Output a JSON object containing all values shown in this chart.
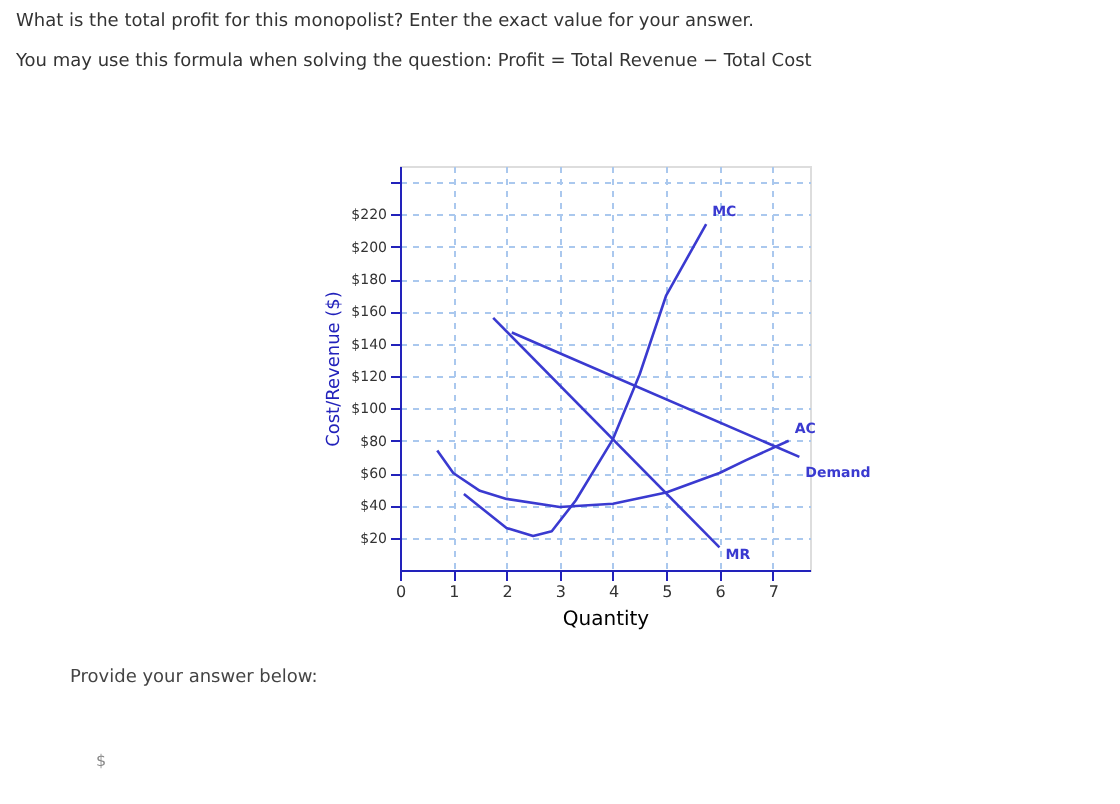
{
  "chart_data": {
    "type": "line",
    "title": "What is the total profit for this monopolist?  Enter the exact value for your answer.",
    "subtitle": "You may use this formula when solving the question: Profit = Total Revenue − Total Cost",
    "xlabel": "Quantity",
    "ylabel": "Cost/Revenue ($)",
    "xlim": [
      0,
      7.7
    ],
    "xticks": [
      0,
      1,
      2,
      3,
      4,
      5,
      6,
      7
    ],
    "ylim": [
      0,
      250
    ],
    "yticks": [
      {
        "value": 20,
        "label": "$20"
      },
      {
        "value": 40,
        "label": "$40"
      },
      {
        "value": 60,
        "label": "$60"
      },
      {
        "value": 80,
        "label": "$80"
      },
      {
        "value": 100,
        "label": "$100"
      },
      {
        "value": 120,
        "label": "$120"
      },
      {
        "value": 140,
        "label": "$140"
      },
      {
        "value": 160,
        "label": "$160"
      },
      {
        "value": 180,
        "label": "$180"
      },
      {
        "value": 200,
        "label": "$200"
      },
      {
        "value": 220,
        "label": "$220"
      },
      {
        "value": 240,
        "label": null
      }
    ],
    "grid": true,
    "legend": false,
    "marker": "none",
    "line_style": "solid",
    "series": [
      {
        "name": "MC",
        "color": "#3a3ad0",
        "x": [
          1.2,
          2,
          2.5,
          2.85,
          3.3,
          4,
          4.5,
          5,
          5.75
        ],
        "values": [
          47,
          26,
          21,
          24,
          43,
          81,
          121,
          170,
          214
        ]
      },
      {
        "name": "AC",
        "color": "#3a3ad0",
        "x": [
          0.7,
          1,
          1.5,
          2,
          3,
          4,
          5,
          6,
          6.5,
          7.3
        ],
        "values": [
          74,
          60,
          49,
          44,
          39,
          41,
          48,
          60,
          68,
          80
        ]
      },
      {
        "name": "Demand",
        "color": "#3a3ad0",
        "x": [
          2.1,
          7.5
        ],
        "values": [
          147,
          70
        ]
      },
      {
        "name": "MR",
        "color": "#3a3ad0",
        "x": [
          1.75,
          6.0
        ],
        "values": [
          156,
          14
        ]
      }
    ],
    "annotations": [
      "Provide your answer below:",
      "$"
    ]
  }
}
